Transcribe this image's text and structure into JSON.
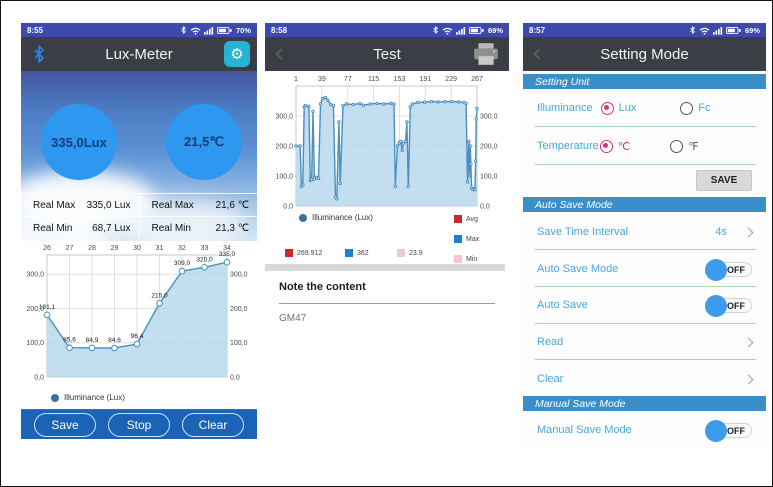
{
  "colors": {
    "status_bar": "#3c4aae",
    "app_header": "#3b3e44",
    "accent_teal": "#27b2d4",
    "gauge_blue": "#2e97ef",
    "bottom_bar": "#1b63b6",
    "chart_line": "#4a8fc0",
    "chart_fill": "#b9d8ec",
    "section_header_blue": "#3a8fc8",
    "setting_label_blue": "#4aa6d9",
    "divider_green": "#a9d4ab",
    "radio_selected_pink": "#d6336c",
    "toggle_knob_blue": "#3d9be9",
    "avg_red": "#cc2a2a",
    "max_blue": "#1e7fd8",
    "min_pink": "#f3c6ce"
  },
  "chart_data": [
    {
      "id": "realtime-illuminance",
      "type": "line",
      "categories": [
        26,
        27,
        28,
        29,
        30,
        31,
        32,
        33,
        34
      ],
      "values": [
        181.1,
        85.6,
        84.9,
        84.6,
        96.4,
        215.0,
        309.0,
        320.0,
        335.0
      ],
      "point_labels": [
        "181,1",
        "85,6",
        "84,9",
        "84,6",
        "96,4",
        "215,0",
        "309,0",
        "320,0",
        "335,0"
      ],
      "ylim": [
        0,
        356
      ],
      "yticks": [
        0,
        100,
        200,
        300
      ],
      "ytick_labels": [
        "0,0",
        "100,0",
        "200,0",
        "300,0"
      ],
      "legend": [
        "Illuminance (Lux)"
      ],
      "legend_position": "bottom-left",
      "grid": true,
      "area": true,
      "line_color": "#4a8fc0",
      "fill_color": "#b9d8ec",
      "marker": "circle"
    },
    {
      "id": "recorded-illuminance",
      "type": "area",
      "x_ticks": [
        1,
        39,
        77,
        115,
        153,
        191,
        229,
        267
      ],
      "xlim": [
        1,
        267
      ],
      "points": [
        [
          1,
          200
        ],
        [
          7,
          200
        ],
        [
          9,
          65
        ],
        [
          11,
          70
        ],
        [
          13,
          330
        ],
        [
          15,
          335
        ],
        [
          20,
          332
        ],
        [
          22,
          85
        ],
        [
          24,
          88
        ],
        [
          26,
          315
        ],
        [
          28,
          90
        ],
        [
          31,
          95
        ],
        [
          34,
          92
        ],
        [
          37,
          340
        ],
        [
          40,
          358
        ],
        [
          44,
          362
        ],
        [
          48,
          352
        ],
        [
          52,
          338
        ],
        [
          56,
          335
        ],
        [
          59,
          30
        ],
        [
          61,
          24
        ],
        [
          64,
          280
        ],
        [
          66,
          75
        ],
        [
          70,
          335
        ],
        [
          75,
          340
        ],
        [
          85,
          338
        ],
        [
          95,
          342
        ],
        [
          100,
          336
        ],
        [
          110,
          340
        ],
        [
          120,
          342
        ],
        [
          130,
          340
        ],
        [
          140,
          342
        ],
        [
          145,
          340
        ],
        [
          147,
          65
        ],
        [
          150,
          200
        ],
        [
          153,
          210
        ],
        [
          155,
          215
        ],
        [
          157,
          185
        ],
        [
          159,
          210
        ],
        [
          162,
          215
        ],
        [
          164,
          280
        ],
        [
          166,
          65
        ],
        [
          169,
          330
        ],
        [
          172,
          340
        ],
        [
          180,
          345
        ],
        [
          190,
          346
        ],
        [
          200,
          348
        ],
        [
          210,
          347
        ],
        [
          220,
          348
        ],
        [
          230,
          348
        ],
        [
          240,
          347
        ],
        [
          248,
          345
        ],
        [
          251,
          342
        ],
        [
          253,
          80
        ],
        [
          255,
          215
        ],
        [
          256,
          100
        ],
        [
          257,
          200
        ],
        [
          258,
          140
        ],
        [
          259,
          60
        ],
        [
          261,
          55
        ],
        [
          263,
          58
        ],
        [
          264,
          55
        ],
        [
          265,
          150
        ],
        [
          266,
          290
        ],
        [
          267,
          325
        ]
      ],
      "ylim": [
        0,
        400
      ],
      "yticks": [
        0,
        100,
        200,
        300
      ],
      "ytick_labels": [
        "0,0",
        "100,0",
        "200,0",
        "300,0"
      ],
      "legend": [
        "Illuminance (Lux)"
      ],
      "legend_position": "bottom-left",
      "summary": {
        "avg": 269.912,
        "max": 362,
        "min": 23.9
      },
      "grid": true,
      "area": true,
      "line_color": "#4a8fc0",
      "fill_color": "#b9d8ec",
      "marker": "circle-small"
    }
  ],
  "screens": {
    "lux_meter": {
      "status": {
        "time": "8:55",
        "battery": "70%"
      },
      "header": {
        "title": "Lux-Meter"
      },
      "gauges": {
        "lux": "335,0Lux",
        "temp": "21,5℃"
      },
      "stats": {
        "rows": [
          {
            "cells": [
              {
                "label": "Real Max",
                "value": "335,0 Lux"
              },
              {
                "label": "Real Max",
                "value": "21,6 ℃"
              }
            ]
          },
          {
            "cells": [
              {
                "label": "Real Min",
                "value": "68,7 Lux"
              },
              {
                "label": "Real Min",
                "value": "21,3 ℃"
              }
            ]
          }
        ]
      },
      "legend": "Illuminance (Lux)",
      "buttons": {
        "save": "Save",
        "stop": "Stop",
        "clear": "Clear"
      }
    },
    "test": {
      "status": {
        "time": "8:58",
        "battery": "69%"
      },
      "header": {
        "title": "Test"
      },
      "legend": "Illuminance (Lux)",
      "stats": {
        "avg": {
          "value": "269.912",
          "label": "Avg"
        },
        "max": {
          "value": "362",
          "label": "Max"
        },
        "min": {
          "value": "23.9",
          "label": "Min"
        }
      },
      "note": {
        "heading": "Note the content",
        "content": "GM47"
      }
    },
    "settings": {
      "status": {
        "time": "8:57",
        "battery": "69%"
      },
      "header": {
        "title": "Setting Mode"
      },
      "setting_unit": {
        "title": "Setting Unit",
        "illuminance": {
          "label": "Illuminance",
          "option1": "Lux",
          "option2": "Fc"
        },
        "temperature": {
          "label": "Temperature",
          "option1": "℃",
          "option2": "℉"
        },
        "save_label": "SAVE"
      },
      "auto_save": {
        "title": "Auto Save Mode",
        "interval": {
          "label": "Save Time Interval",
          "value": "4s"
        },
        "mode": {
          "label": "Auto Save Mode",
          "state": "OFF"
        },
        "save": {
          "label": "Auto Save",
          "state": "OFF"
        },
        "read": "Read",
        "clear": "Clear"
      },
      "manual_save": {
        "title": "Manual Save Mode",
        "mode": {
          "label": "Manual Save Mode",
          "state": "OFF"
        }
      }
    }
  }
}
